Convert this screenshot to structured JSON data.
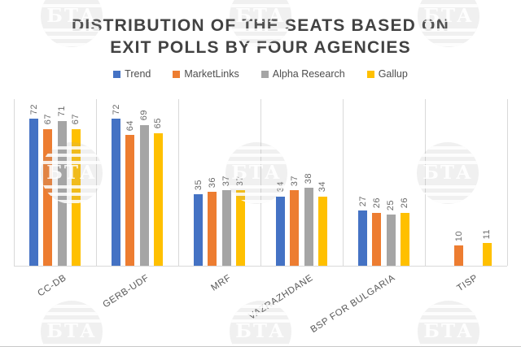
{
  "title": {
    "line1": "DISTRIBUTION OF THE SEATS BASED ON",
    "line2": "EXIT POLLS BY FOUR AGENCIES"
  },
  "watermark_text": "БТА",
  "colors": {
    "trend_blue": "#4472C4",
    "marketlinks_orange": "#ED7D31",
    "alpha_research_gray": "#A5A5A5",
    "gallup_yellow": "#FFC000",
    "title_text": "#424242",
    "label_text": "#6b6b6b",
    "gridline": "#d9d9d9"
  },
  "chart_data": {
    "type": "bar",
    "title": "DISTRIBUTION OF THE SEATS BASED ON EXIT POLLS BY FOUR AGENCIES",
    "xlabel": "",
    "ylabel": "",
    "ylim": [
      0,
      80
    ],
    "grid": "vertical category separators only",
    "legend_position": "top",
    "value_labels": "rotated 90deg above bars",
    "categories": [
      "CC-DB",
      "GERB-UDF",
      "MRF",
      "VAZRAZHDANE",
      "BSP FOR BULGARIA",
      "TISP"
    ],
    "series": [
      {
        "name": "Trend",
        "color": "#4472C4",
        "values": [
          72,
          72,
          35,
          34,
          27,
          null
        ]
      },
      {
        "name": "MarketLinks",
        "color": "#ED7D31",
        "values": [
          67,
          64,
          36,
          37,
          26,
          10
        ]
      },
      {
        "name": "Alpha Research",
        "color": "#A5A5A5",
        "values": [
          71,
          69,
          37,
          38,
          25,
          null
        ]
      },
      {
        "name": "Gallup",
        "color": "#FFC000",
        "values": [
          67,
          65,
          37,
          34,
          26,
          11
        ]
      }
    ]
  }
}
